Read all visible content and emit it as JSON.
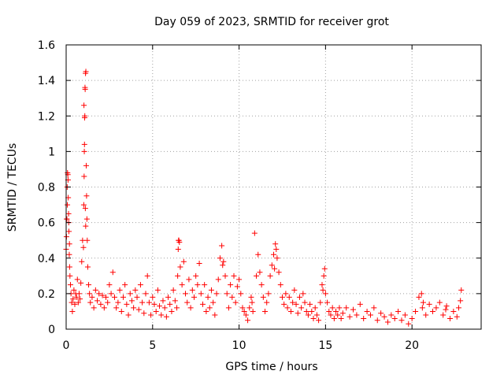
{
  "chart_data": {
    "type": "scatter",
    "title": "Day 059 of 2023, SRMTID for receiver grot",
    "xlabel": "GPS time / hours",
    "ylabel": "SRMTID / TECUs",
    "xlim": [
      0,
      24
    ],
    "ylim": [
      0,
      1.6
    ],
    "xticks": [
      0,
      5,
      10,
      15,
      20
    ],
    "xtick_labels": [
      "0",
      "5",
      "10",
      "15",
      "20"
    ],
    "yticks": [
      0,
      0.2,
      0.4,
      0.6,
      0.8,
      1.0,
      1.2,
      1.4,
      1.6
    ],
    "ytick_labels": [
      "0",
      "0.2",
      "0.4",
      "0.6",
      "0.8",
      "1",
      "1.2",
      "1.4",
      "1.6"
    ],
    "grid": true,
    "marker": "+",
    "colors": {
      "points": "#ff0000",
      "grid": "#a0a0a0",
      "axis": "#000000"
    },
    "series": [
      {
        "name": "SRMTID",
        "x": [
          0.0,
          0.02,
          0.04,
          0.06,
          0.08,
          0.1,
          0.12,
          0.14,
          0.16,
          0.18,
          0.2,
          0.22,
          0.25,
          0.28,
          0.32,
          0.36,
          0.4,
          0.45,
          0.5,
          0.55,
          0.6,
          0.65,
          0.7,
          0.75,
          0.8,
          0.85,
          0.9,
          0.95,
          1.0,
          1.02,
          1.04,
          1.06,
          1.08,
          1.1,
          1.12,
          1.14,
          1.16,
          1.18,
          1.2,
          1.22,
          1.25,
          1.3,
          1.35,
          1.4,
          1.5,
          1.6,
          1.7,
          1.8,
          1.9,
          2.0,
          2.1,
          2.2,
          2.3,
          2.4,
          2.5,
          2.6,
          2.7,
          2.8,
          2.9,
          3.0,
          3.1,
          3.2,
          3.3,
          3.4,
          3.5,
          3.6,
          3.7,
          3.8,
          3.9,
          4.0,
          4.1,
          4.2,
          4.3,
          4.4,
          4.5,
          4.6,
          4.7,
          4.8,
          4.9,
          5.0,
          5.1,
          5.2,
          5.3,
          5.4,
          5.5,
          5.6,
          5.7,
          5.8,
          5.9,
          6.0,
          6.1,
          6.2,
          6.3,
          6.4,
          6.45,
          6.5,
          6.55,
          6.6,
          6.7,
          6.8,
          6.9,
          7.0,
          7.1,
          7.2,
          7.3,
          7.4,
          7.5,
          7.6,
          7.7,
          7.8,
          7.9,
          8.0,
          8.1,
          8.2,
          8.3,
          8.4,
          8.5,
          8.6,
          8.7,
          8.8,
          8.9,
          9.0,
          9.1,
          9.2,
          9.3,
          9.4,
          9.5,
          9.6,
          9.7,
          9.8,
          9.9,
          10.0,
          10.1,
          10.2,
          10.3,
          10.4,
          10.5,
          10.6,
          10.7,
          10.8,
          10.9,
          11.0,
          11.1,
          11.2,
          11.3,
          11.4,
          11.5,
          11.6,
          11.7,
          11.8,
          11.9,
          12.0,
          12.1,
          12.2,
          12.3,
          12.4,
          12.5,
          12.6,
          12.7,
          12.8,
          12.9,
          13.0,
          13.1,
          13.2,
          13.3,
          13.4,
          13.5,
          13.6,
          13.7,
          13.8,
          13.9,
          14.0,
          14.1,
          14.2,
          14.3,
          14.4,
          14.5,
          14.6,
          14.7,
          14.8,
          14.9,
          15.0,
          15.1,
          15.2,
          15.3,
          15.4,
          15.5,
          15.6,
          15.7,
          15.8,
          15.9,
          16.0,
          16.2,
          16.4,
          16.6,
          16.8,
          17.0,
          17.2,
          17.4,
          17.6,
          17.8,
          18.0,
          18.2,
          18.4,
          18.6,
          18.8,
          19.0,
          19.2,
          19.4,
          19.6,
          19.8,
          20.0,
          20.2,
          20.4,
          20.6,
          20.8,
          21.0,
          21.2,
          21.4,
          21.6,
          21.8,
          22.0,
          22.2,
          22.4,
          22.6,
          22.7,
          22.8,
          22.85,
          0.03,
          0.07,
          0.11,
          0.15,
          0.19,
          1.03,
          1.05,
          1.07,
          1.09,
          1.11,
          1.13,
          9.05,
          10.75,
          12.05,
          12.15,
          6.48,
          6.52,
          14.85,
          14.95,
          20.55,
          20.65,
          21.95
        ],
        "y": [
          0.45,
          0.52,
          0.62,
          0.8,
          0.88,
          0.87,
          0.74,
          0.65,
          0.55,
          0.42,
          0.35,
          0.3,
          0.25,
          0.2,
          0.15,
          0.1,
          0.17,
          0.22,
          0.14,
          0.2,
          0.18,
          0.28,
          0.15,
          0.2,
          0.17,
          0.26,
          0.38,
          0.5,
          0.46,
          0.7,
          0.86,
          1.04,
          1.2,
          1.35,
          1.44,
          1.45,
          0.92,
          0.75,
          0.62,
          0.5,
          0.35,
          0.25,
          0.2,
          0.15,
          0.18,
          0.12,
          0.22,
          0.16,
          0.2,
          0.14,
          0.19,
          0.12,
          0.18,
          0.15,
          0.25,
          0.2,
          0.32,
          0.18,
          0.12,
          0.15,
          0.22,
          0.1,
          0.18,
          0.25,
          0.14,
          0.08,
          0.2,
          0.16,
          0.12,
          0.22,
          0.18,
          0.11,
          0.25,
          0.15,
          0.09,
          0.2,
          0.3,
          0.15,
          0.08,
          0.18,
          0.14,
          0.1,
          0.22,
          0.13,
          0.08,
          0.16,
          0.12,
          0.07,
          0.18,
          0.14,
          0.1,
          0.22,
          0.16,
          0.12,
          0.3,
          0.5,
          0.49,
          0.35,
          0.25,
          0.38,
          0.2,
          0.15,
          0.28,
          0.12,
          0.22,
          0.18,
          0.3,
          0.25,
          0.37,
          0.2,
          0.14,
          0.25,
          0.1,
          0.18,
          0.12,
          0.22,
          0.15,
          0.08,
          0.2,
          0.28,
          0.4,
          0.47,
          0.38,
          0.3,
          0.2,
          0.12,
          0.25,
          0.18,
          0.3,
          0.15,
          0.24,
          0.28,
          0.2,
          0.12,
          0.1,
          0.08,
          0.05,
          0.12,
          0.18,
          0.1,
          0.54,
          0.3,
          0.42,
          0.32,
          0.25,
          0.18,
          0.1,
          0.15,
          0.2,
          0.3,
          0.36,
          0.42,
          0.48,
          0.4,
          0.32,
          0.25,
          0.18,
          0.14,
          0.2,
          0.12,
          0.18,
          0.1,
          0.15,
          0.22,
          0.14,
          0.09,
          0.18,
          0.12,
          0.2,
          0.15,
          0.1,
          0.08,
          0.14,
          0.1,
          0.06,
          0.12,
          0.08,
          0.05,
          0.15,
          0.25,
          0.3,
          0.2,
          0.15,
          0.1,
          0.08,
          0.12,
          0.06,
          0.1,
          0.08,
          0.12,
          0.06,
          0.09,
          0.12,
          0.07,
          0.11,
          0.08,
          0.14,
          0.06,
          0.1,
          0.08,
          0.12,
          0.05,
          0.09,
          0.07,
          0.04,
          0.08,
          0.06,
          0.1,
          0.05,
          0.08,
          0.03,
          0.06,
          0.1,
          0.18,
          0.12,
          0.08,
          0.14,
          0.1,
          0.12,
          0.15,
          0.08,
          0.13,
          0.06,
          0.1,
          0.07,
          0.12,
          0.16,
          0.22,
          0.62,
          0.7,
          0.84,
          0.6,
          0.48,
          1.26,
          1.0,
          1.19,
          1.36,
          0.68,
          0.58,
          0.36,
          0.15,
          0.34,
          0.45,
          0.45,
          0.5,
          0.22,
          0.34,
          0.2,
          0.15,
          0.11
        ]
      }
    ]
  }
}
